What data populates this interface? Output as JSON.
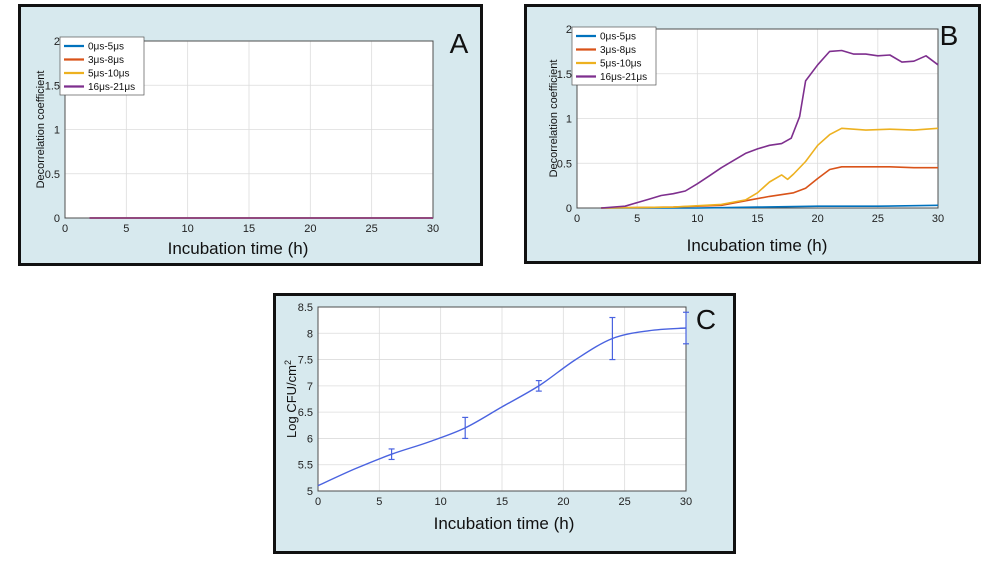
{
  "chart_data": [
    {
      "panel": "A",
      "type": "line",
      "xlabel": "Incubation time (h)",
      "ylabel": "Decorrelation coefficient",
      "xlim": [
        0,
        30
      ],
      "ylim": [
        0,
        2
      ],
      "xticks": [
        "0",
        "5",
        "10",
        "15",
        "20",
        "25",
        "30"
      ],
      "yticks": [
        "0",
        "0.5",
        "1",
        "1.5",
        "2"
      ],
      "grid": true,
      "legend_position": "top-left",
      "series": [
        {
          "name": "0μs-5μs",
          "color": "#0072bd",
          "x": [
            2,
            30
          ],
          "y": [
            0,
            0
          ]
        },
        {
          "name": "3μs-8μs",
          "color": "#d95319",
          "x": [
            2,
            30
          ],
          "y": [
            0,
            0
          ]
        },
        {
          "name": "5μs-10μs",
          "color": "#edb120",
          "x": [
            2,
            30
          ],
          "y": [
            0,
            0
          ]
        },
        {
          "name": "16μs-21μs",
          "color": "#7e2f8e",
          "x": [
            2,
            30
          ],
          "y": [
            0,
            0
          ]
        }
      ]
    },
    {
      "panel": "B",
      "type": "line",
      "xlabel": "Incubation time (h)",
      "ylabel": "Decorrelation coefficient",
      "xlim": [
        0,
        30
      ],
      "ylim": [
        0,
        2
      ],
      "xticks": [
        "0",
        "5",
        "10",
        "15",
        "20",
        "25",
        "30"
      ],
      "yticks": [
        "0",
        "0.5",
        "1",
        "1.5",
        "2"
      ],
      "grid": true,
      "legend_position": "top-left",
      "series": [
        {
          "name": "0μs-5μs",
          "color": "#0072bd",
          "x": [
            2,
            5,
            10,
            15,
            20,
            25,
            30
          ],
          "y": [
            0,
            0,
            0,
            0.01,
            0.02,
            0.02,
            0.03
          ]
        },
        {
          "name": "3μs-8μs",
          "color": "#d95319",
          "x": [
            2,
            8,
            12,
            14,
            16,
            18,
            19,
            20,
            21,
            22,
            24,
            26,
            28,
            30
          ],
          "y": [
            0,
            0.01,
            0.03,
            0.08,
            0.13,
            0.17,
            0.22,
            0.33,
            0.43,
            0.46,
            0.46,
            0.46,
            0.45,
            0.45
          ]
        },
        {
          "name": "5μs-10μs",
          "color": "#edb120",
          "x": [
            2,
            8,
            12,
            14,
            15,
            16,
            17,
            17.5,
            18,
            19,
            20,
            21,
            22,
            24,
            26,
            28,
            30
          ],
          "y": [
            0,
            0.01,
            0.04,
            0.09,
            0.17,
            0.29,
            0.37,
            0.32,
            0.38,
            0.52,
            0.7,
            0.82,
            0.89,
            0.87,
            0.88,
            0.87,
            0.89
          ]
        },
        {
          "name": "16μs-21μs",
          "color": "#7e2f8e",
          "x": [
            2,
            4,
            5,
            6,
            7,
            8,
            9,
            10,
            11,
            12,
            13,
            14,
            15,
            16,
            17,
            17.8,
            18.5,
            19,
            20,
            21,
            22,
            23,
            24,
            25,
            26,
            27,
            28,
            29,
            30
          ],
          "y": [
            0,
            0.02,
            0.06,
            0.1,
            0.14,
            0.16,
            0.19,
            0.27,
            0.36,
            0.45,
            0.53,
            0.61,
            0.66,
            0.7,
            0.72,
            0.78,
            1.02,
            1.42,
            1.6,
            1.75,
            1.76,
            1.72,
            1.72,
            1.7,
            1.71,
            1.63,
            1.64,
            1.7,
            1.6
          ]
        }
      ]
    },
    {
      "panel": "C",
      "type": "line",
      "xlabel": "Incubation time (h)",
      "ylabel": "Log CFU/cm",
      "ylabel_superscript": "2",
      "xlim": [
        0,
        30
      ],
      "ylim": [
        5,
        8.5
      ],
      "xticks": [
        "0",
        "5",
        "10",
        "15",
        "20",
        "25",
        "30"
      ],
      "yticks": [
        "5",
        "5.5",
        "6",
        "6.5",
        "7",
        "7.5",
        "8",
        "8.5"
      ],
      "grid": true,
      "curve": {
        "color": "#4a63e0",
        "x": [
          0,
          3,
          6,
          9,
          12,
          15,
          18,
          21,
          24,
          27,
          30
        ],
        "y": [
          5.1,
          5.42,
          5.7,
          5.93,
          6.2,
          6.6,
          7.0,
          7.5,
          7.9,
          8.05,
          8.1
        ]
      },
      "points": [
        {
          "x": 6,
          "y": 5.7,
          "err": 0.1
        },
        {
          "x": 12,
          "y": 6.2,
          "err": 0.2
        },
        {
          "x": 18,
          "y": 7.0,
          "err": 0.1
        },
        {
          "x": 24,
          "y": 7.9,
          "err": 0.4
        },
        {
          "x": 30,
          "y": 8.1,
          "err": 0.3
        }
      ]
    }
  ]
}
